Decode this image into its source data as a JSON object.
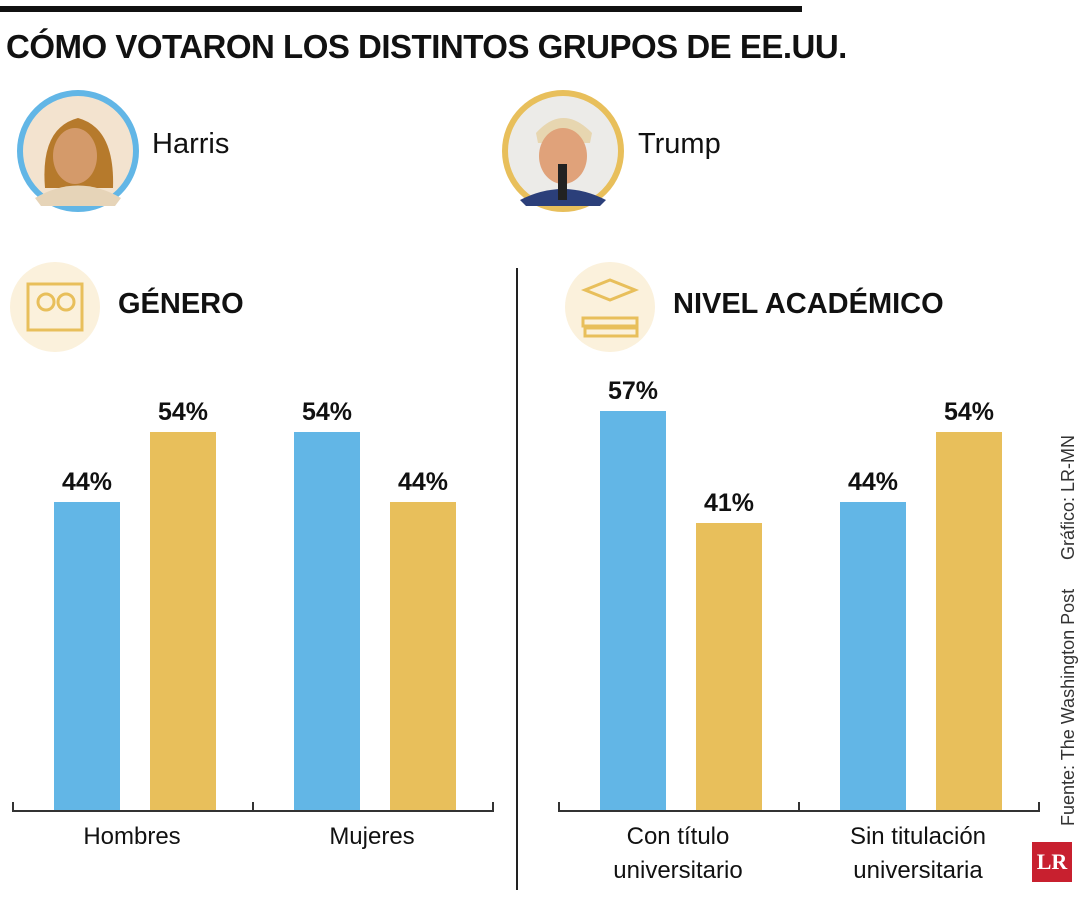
{
  "title": "CÓMO VOTARON LOS DISTINTOS GRUPOS DE EE.UU.",
  "legend": [
    {
      "name": "Harris",
      "color": "#62b6e6"
    },
    {
      "name": "Trump",
      "color": "#e8bf5b"
    }
  ],
  "source": "Fuente: The Washington Post",
  "credit": "Gráfico: LR-MN",
  "logo": "LR",
  "chart_data": [
    {
      "type": "bar",
      "title": "GÉNERO",
      "categories": [
        "Hombres",
        "Mujeres"
      ],
      "series": [
        {
          "color": "#62b6e6",
          "values": [
            44,
            54
          ],
          "value_labels": [
            "44%",
            "54%"
          ]
        },
        {
          "color": "#e8bf5b",
          "values": [
            54,
            44
          ],
          "value_labels": [
            "54%",
            "44%"
          ]
        }
      ]
    },
    {
      "type": "bar",
      "title": "NIVEL ACADÉMICO",
      "categories": [
        "Con título universitario",
        "Sin titulación universitaria"
      ],
      "series": [
        {
          "color": "#62b6e6",
          "values": [
            57,
            44
          ],
          "value_labels": [
            "57%",
            "44%"
          ]
        },
        {
          "color": "#e8bf5b",
          "values": [
            41,
            54
          ],
          "value_labels": [
            "41%",
            "54%"
          ]
        }
      ]
    }
  ]
}
